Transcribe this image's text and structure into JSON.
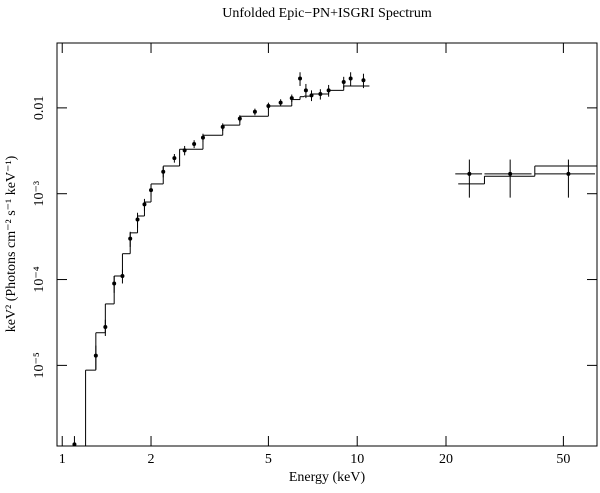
{
  "chart_data": {
    "type": "scatter",
    "title": "Unfolded Epic−PN+ISGRI Spectrum",
    "xlabel": "Energy (keV)",
    "ylabel": "keV² (Photons cm⁻² s⁻¹ keV⁻¹)",
    "xlog": true,
    "ylog": true,
    "xlim": [
      0.96,
      65
    ],
    "ylim": [
      1.15e-06,
      0.057
    ],
    "xticks": [
      1,
      2,
      5,
      10,
      20,
      50
    ],
    "yticks": [
      {
        "value": 1e-05,
        "label": "10⁻⁵"
      },
      {
        "value": 0.0001,
        "label": "10⁻⁴"
      },
      {
        "value": 0.001,
        "label": "10⁻³"
      },
      0.01
    ],
    "color": "#000000",
    "series": [
      {
        "name": "data",
        "x": [
          1.1,
          1.3,
          1.4,
          1.5,
          1.6,
          1.7,
          1.8,
          1.9,
          2.0,
          2.2,
          2.4,
          2.6,
          2.8,
          3.0,
          3.5,
          4.0,
          4.5,
          5.0,
          5.5,
          6.0,
          6.4,
          6.7,
          7.0,
          7.5,
          8.0,
          9.0,
          9.5,
          10.5,
          24,
          33,
          52
        ],
        "values": [
          1.2e-06,
          1.3e-05,
          2.8e-05,
          9e-05,
          0.00011,
          0.0003,
          0.0005,
          0.00075,
          0.0011,
          0.0018,
          0.0026,
          0.0032,
          0.0038,
          0.0045,
          0.006,
          0.0075,
          0.009,
          0.0105,
          0.0115,
          0.013,
          0.022,
          0.016,
          0.014,
          0.0145,
          0.016,
          0.02,
          0.022,
          0.021,
          0.0017,
          0.0017,
          0.0017
        ],
        "errors": [
          3e-07,
          4e-06,
          6e-06,
          2e-05,
          2e-05,
          6e-05,
          0.0001,
          0.00012,
          0.00017,
          0.00025,
          0.0003,
          0.0004,
          0.0004,
          0.0005,
          0.0006,
          0.0007,
          0.0008,
          0.001,
          0.0011,
          0.0013,
          0.004,
          0.003,
          0.002,
          0.002,
          0.0025,
          0.003,
          0.004,
          0.004,
          0.0008,
          0.0008,
          0.0008
        ],
        "xerrors": [
          0,
          0,
          0,
          0,
          0,
          0,
          0,
          0,
          0,
          0,
          0,
          0,
          0,
          0,
          0,
          0,
          0,
          0,
          0,
          0,
          0,
          0,
          0,
          0,
          0,
          0,
          0,
          0,
          2.5,
          6,
          12
        ]
      }
    ],
    "model": {
      "bins": [
        1.2,
        1.3,
        1.4,
        1.5,
        1.6,
        1.7,
        1.8,
        1.9,
        2.0,
        2.2,
        2.5,
        3.0,
        3.5,
        4.0,
        5.0,
        6.0,
        6.4,
        6.6,
        7.0,
        8.0,
        9.0,
        11.0,
        22,
        27,
        40,
        65
      ],
      "values": [
        8.8e-06,
        2.4e-05,
        5.2e-05,
        0.00011,
        0.0002,
        0.00035,
        0.00055,
        0.0008,
        0.0013,
        0.0021,
        0.0033,
        0.0048,
        0.0063,
        0.008,
        0.0105,
        0.0125,
        0.0135,
        0.0137,
        0.0145,
        0.016,
        0.018,
        null,
        0.0013,
        0.0016,
        0.0021
      ]
    }
  }
}
